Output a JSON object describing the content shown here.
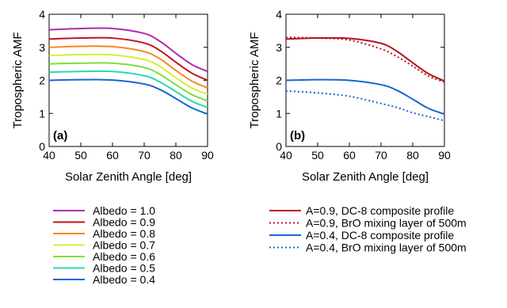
{
  "chart_data": [
    {
      "type": "line",
      "panel_label": "(a)",
      "xlabel": "Solar Zenith Angle [deg]",
      "ylabel": "Tropospheric AMF",
      "xlim": [
        40,
        90
      ],
      "ylim": [
        0,
        4
      ],
      "xticks": [
        "40",
        "50",
        "60",
        "70",
        "80",
        "90"
      ],
      "yticks": [
        "0",
        "1",
        "2",
        "3",
        "4"
      ],
      "x": [
        40,
        50,
        60,
        70,
        75,
        80,
        85,
        90
      ],
      "series": [
        {
          "name": "Albedo = 1.0",
          "color": "#b02ab5",
          "dash": "solid",
          "values": [
            3.53,
            3.57,
            3.57,
            3.42,
            3.18,
            2.82,
            2.48,
            2.27
          ]
        },
        {
          "name": "Albedo = 0.9",
          "color": "#c0141c",
          "dash": "solid",
          "values": [
            3.25,
            3.28,
            3.28,
            3.13,
            2.9,
            2.55,
            2.22,
            2.0
          ]
        },
        {
          "name": "Albedo = 0.8",
          "color": "#f5891f",
          "dash": "solid",
          "values": [
            3.0,
            3.03,
            3.02,
            2.87,
            2.65,
            2.3,
            1.98,
            1.77
          ]
        },
        {
          "name": "Albedo = 0.7",
          "color": "#d6ee3a",
          "dash": "solid",
          "values": [
            2.75,
            2.78,
            2.77,
            2.63,
            2.42,
            2.08,
            1.77,
            1.58
          ]
        },
        {
          "name": "Albedo = 0.6",
          "color": "#7cdf3b",
          "dash": "solid",
          "values": [
            2.5,
            2.52,
            2.52,
            2.39,
            2.18,
            1.87,
            1.57,
            1.38
          ]
        },
        {
          "name": "Albedo = 0.5",
          "color": "#2ad8b0",
          "dash": "solid",
          "values": [
            2.25,
            2.27,
            2.27,
            2.14,
            1.95,
            1.66,
            1.37,
            1.18
          ]
        },
        {
          "name": "Albedo = 0.4",
          "color": "#1a64d8",
          "dash": "solid",
          "values": [
            2.0,
            2.02,
            2.01,
            1.89,
            1.72,
            1.45,
            1.17,
            0.98
          ]
        }
      ]
    },
    {
      "type": "line",
      "panel_label": "(b)",
      "xlabel": "Solar Zenith Angle [deg]",
      "ylabel": "Tropospheric AMF",
      "xlim": [
        40,
        90
      ],
      "ylim": [
        0,
        4
      ],
      "xticks": [
        "40",
        "50",
        "60",
        "70",
        "80",
        "90"
      ],
      "yticks": [
        "0",
        "1",
        "2",
        "3",
        "4"
      ],
      "x": [
        40,
        50,
        60,
        70,
        75,
        80,
        85,
        90
      ],
      "series": [
        {
          "name": "A=0.9, DC-8 composite profile",
          "color": "#b5141c",
          "dash": "solid",
          "values": [
            3.25,
            3.28,
            3.27,
            3.12,
            2.88,
            2.53,
            2.2,
            1.98
          ]
        },
        {
          "name": "A=0.9, BrO mixing layer of 500m",
          "color": "#b5141c",
          "dash": "dotted",
          "values": [
            3.3,
            3.28,
            3.22,
            2.95,
            2.72,
            2.43,
            2.13,
            1.95
          ]
        },
        {
          "name": "A=0.4, DC-8 composite profile",
          "color": "#1a64d8",
          "dash": "solid",
          "values": [
            2.0,
            2.02,
            2.0,
            1.87,
            1.7,
            1.43,
            1.15,
            0.98
          ]
        },
        {
          "name": "A=0.4, BrO mixing layer of 500m",
          "color": "#1a64d8",
          "dash": "dotted",
          "values": [
            1.68,
            1.62,
            1.52,
            1.3,
            1.18,
            1.02,
            0.9,
            0.78
          ]
        }
      ]
    }
  ]
}
